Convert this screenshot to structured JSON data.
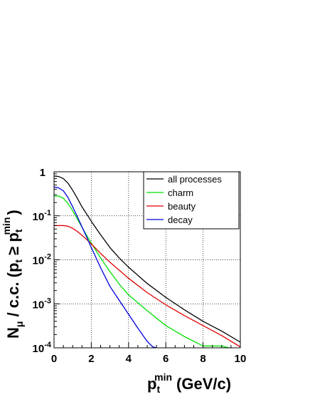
{
  "chart_data": {
    "type": "line",
    "xlabel": {
      "main": "p",
      "sub": "t",
      "sup": "min",
      "units": "(GeV/c)"
    },
    "ylabel": {
      "n": "N",
      "n_sub": "μ",
      "mid": " / c.c. (p",
      "p_sub": "t",
      "ge": " ≥ p",
      "pmin_sub": "t",
      "pmin_sup": "min",
      "close": ")"
    },
    "xlim": [
      0,
      10
    ],
    "ylim": [
      0.0001,
      1
    ],
    "yscale": "log",
    "grid": true,
    "legend_position": "top-right",
    "x_ticks": [
      {
        "value": 0,
        "label": "0"
      },
      {
        "value": 2,
        "label": "2"
      },
      {
        "value": 4,
        "label": "4"
      },
      {
        "value": 6,
        "label": "6"
      },
      {
        "value": 8,
        "label": "8"
      },
      {
        "value": 10,
        "label": "10"
      }
    ],
    "y_ticks": [
      {
        "value": 1,
        "base": "1",
        "exp": ""
      },
      {
        "value": 0.1,
        "base": "10",
        "exp": "-1"
      },
      {
        "value": 0.01,
        "base": "10",
        "exp": "-2"
      },
      {
        "value": 0.001,
        "base": "10",
        "exp": "-3"
      },
      {
        "value": 0.0001,
        "base": "10",
        "exp": "-4"
      }
    ],
    "series": [
      {
        "name": "all processes",
        "color": "#000000",
        "x": [
          0,
          0.25,
          0.5,
          0.75,
          1,
          1.25,
          1.5,
          1.75,
          2,
          2.5,
          3,
          3.5,
          4,
          5,
          6,
          7,
          8,
          9,
          10
        ],
        "y": [
          0.8,
          0.78,
          0.7,
          0.55,
          0.38,
          0.25,
          0.16,
          0.11,
          0.075,
          0.037,
          0.019,
          0.011,
          0.0068,
          0.0029,
          0.0014,
          0.00073,
          0.0004,
          0.00024,
          0.000135
        ]
      },
      {
        "name": "charm",
        "color": "#00e000",
        "x": [
          0,
          0.25,
          0.5,
          0.75,
          1,
          1.25,
          1.5,
          1.75,
          2,
          2.5,
          3,
          3.5,
          4,
          5,
          6,
          7,
          8,
          9,
          9.4
        ],
        "y": [
          0.28,
          0.28,
          0.25,
          0.19,
          0.13,
          0.085,
          0.055,
          0.036,
          0.024,
          0.011,
          0.0054,
          0.0028,
          0.0016,
          0.0007,
          0.00032,
          0.00018,
          0.00011,
          0.00011,
          0.0001
        ]
      },
      {
        "name": "beauty",
        "color": "#e00000",
        "x": [
          0,
          0.25,
          0.5,
          0.75,
          1,
          1.25,
          1.5,
          1.75,
          2,
          2.5,
          3,
          3.5,
          4,
          5,
          6,
          7,
          8,
          9,
          10
        ],
        "y": [
          0.06,
          0.06,
          0.06,
          0.058,
          0.052,
          0.044,
          0.036,
          0.029,
          0.023,
          0.014,
          0.0088,
          0.0058,
          0.0038,
          0.0018,
          0.00095,
          0.00054,
          0.00032,
          0.00019,
          0.000105
        ]
      },
      {
        "name": "decay",
        "color": "#0000e0",
        "x": [
          0,
          0.25,
          0.5,
          0.75,
          1,
          1.25,
          1.5,
          1.75,
          2,
          2.5,
          3,
          3.5,
          4,
          4.5,
          5,
          5.3,
          5.5
        ],
        "y": [
          0.45,
          0.43,
          0.37,
          0.26,
          0.16,
          0.095,
          0.056,
          0.033,
          0.019,
          0.0066,
          0.0025,
          0.0012,
          0.00058,
          0.00028,
          0.00014,
          0.000105,
          0.0001
        ]
      }
    ]
  }
}
